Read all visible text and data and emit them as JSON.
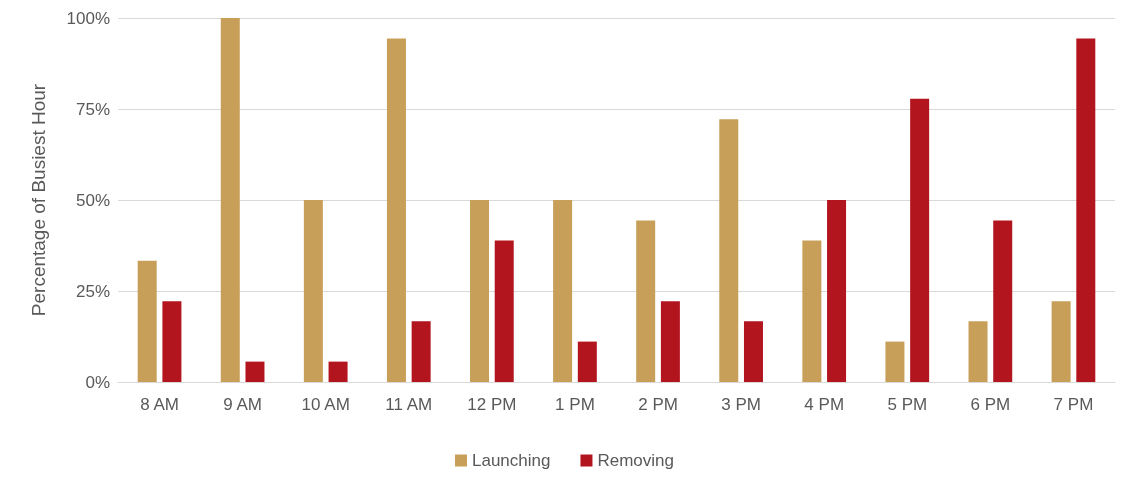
{
  "chart_data": {
    "type": "bar",
    "ylabel": "Percentage of Busiest Hour",
    "categories": [
      "8 AM",
      "9 AM",
      "10 AM",
      "11 AM",
      "12 PM",
      "1 PM",
      "2 PM",
      "3 PM",
      "4 PM",
      "5 PM",
      "6 PM",
      "7 PM"
    ],
    "series": [
      {
        "name": "Launching",
        "color": "#c89f58",
        "values": [
          33.3,
          100,
          50,
          94.4,
          50,
          50,
          44.4,
          72.2,
          38.9,
          11.1,
          16.7,
          22.2
        ]
      },
      {
        "name": "Removing",
        "color": "#b3151f",
        "values": [
          22.2,
          5.6,
          5.6,
          16.7,
          38.9,
          11.1,
          22.2,
          16.7,
          50,
          77.8,
          44.4,
          94.4
        ]
      }
    ],
    "ylim": [
      0,
      100
    ],
    "yticks": [
      {
        "value": 0,
        "label": "0%"
      },
      {
        "value": 25,
        "label": "25%"
      },
      {
        "value": 50,
        "label": "50%"
      },
      {
        "value": 75,
        "label": "75%"
      },
      {
        "value": 100,
        "label": "100%"
      }
    ],
    "grid": "y",
    "legend": "bottom"
  }
}
